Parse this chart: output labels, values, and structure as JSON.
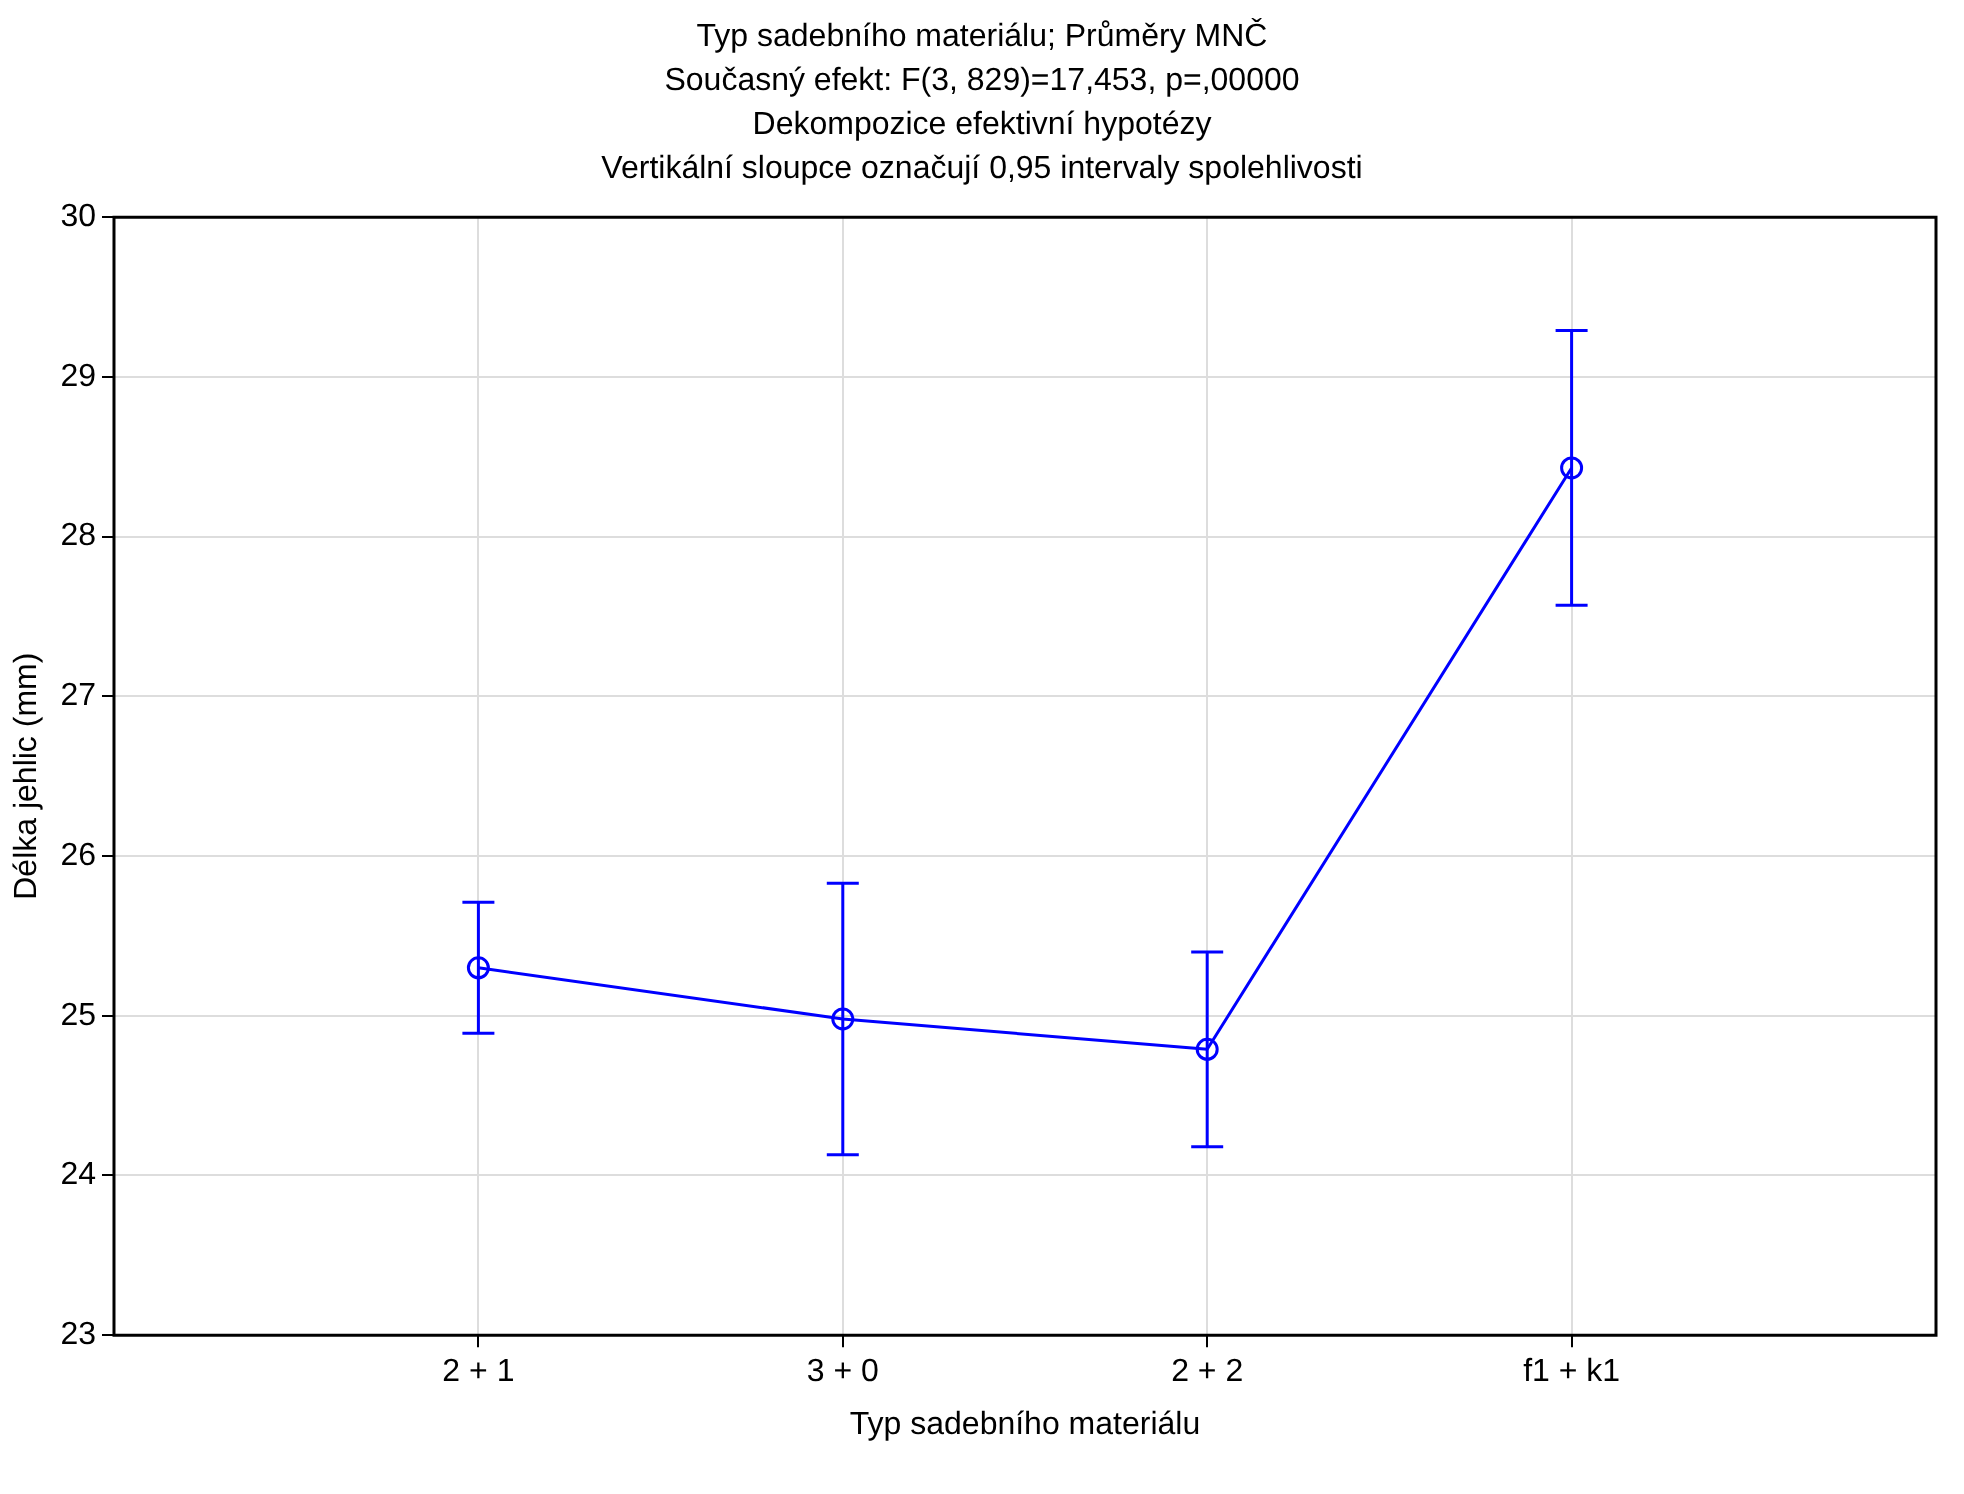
{
  "chart_data": {
    "type": "line",
    "title": "Typ sadebního materiálu; Průměry MNČ",
    "subtitle": "Současný efekt: F(3, 829)=17,453, p=,00000\nDekompozice efektivní hypotézy\nVertikální sloupce označují 0,95 intervaly spolehlivosti",
    "xlabel": "Typ sadebního materiálu",
    "ylabel": "Délka jehlic (mm)",
    "categories": [
      "2 + 1",
      "3 + 0",
      "2 + 2",
      "f1 + k1"
    ],
    "series": [
      {
        "color": "#0000ff",
        "values": [
          25.3,
          24.98,
          24.79,
          28.43
        ],
        "errors": [
          0.41,
          0.85,
          0.61,
          0.86
        ]
      }
    ],
    "ylim": [
      23,
      30
    ],
    "yticks": [
      23,
      24,
      25,
      26,
      27,
      28,
      29,
      30
    ],
    "grid": true,
    "legend": false,
    "marker": "circle",
    "line_style": "solid"
  }
}
